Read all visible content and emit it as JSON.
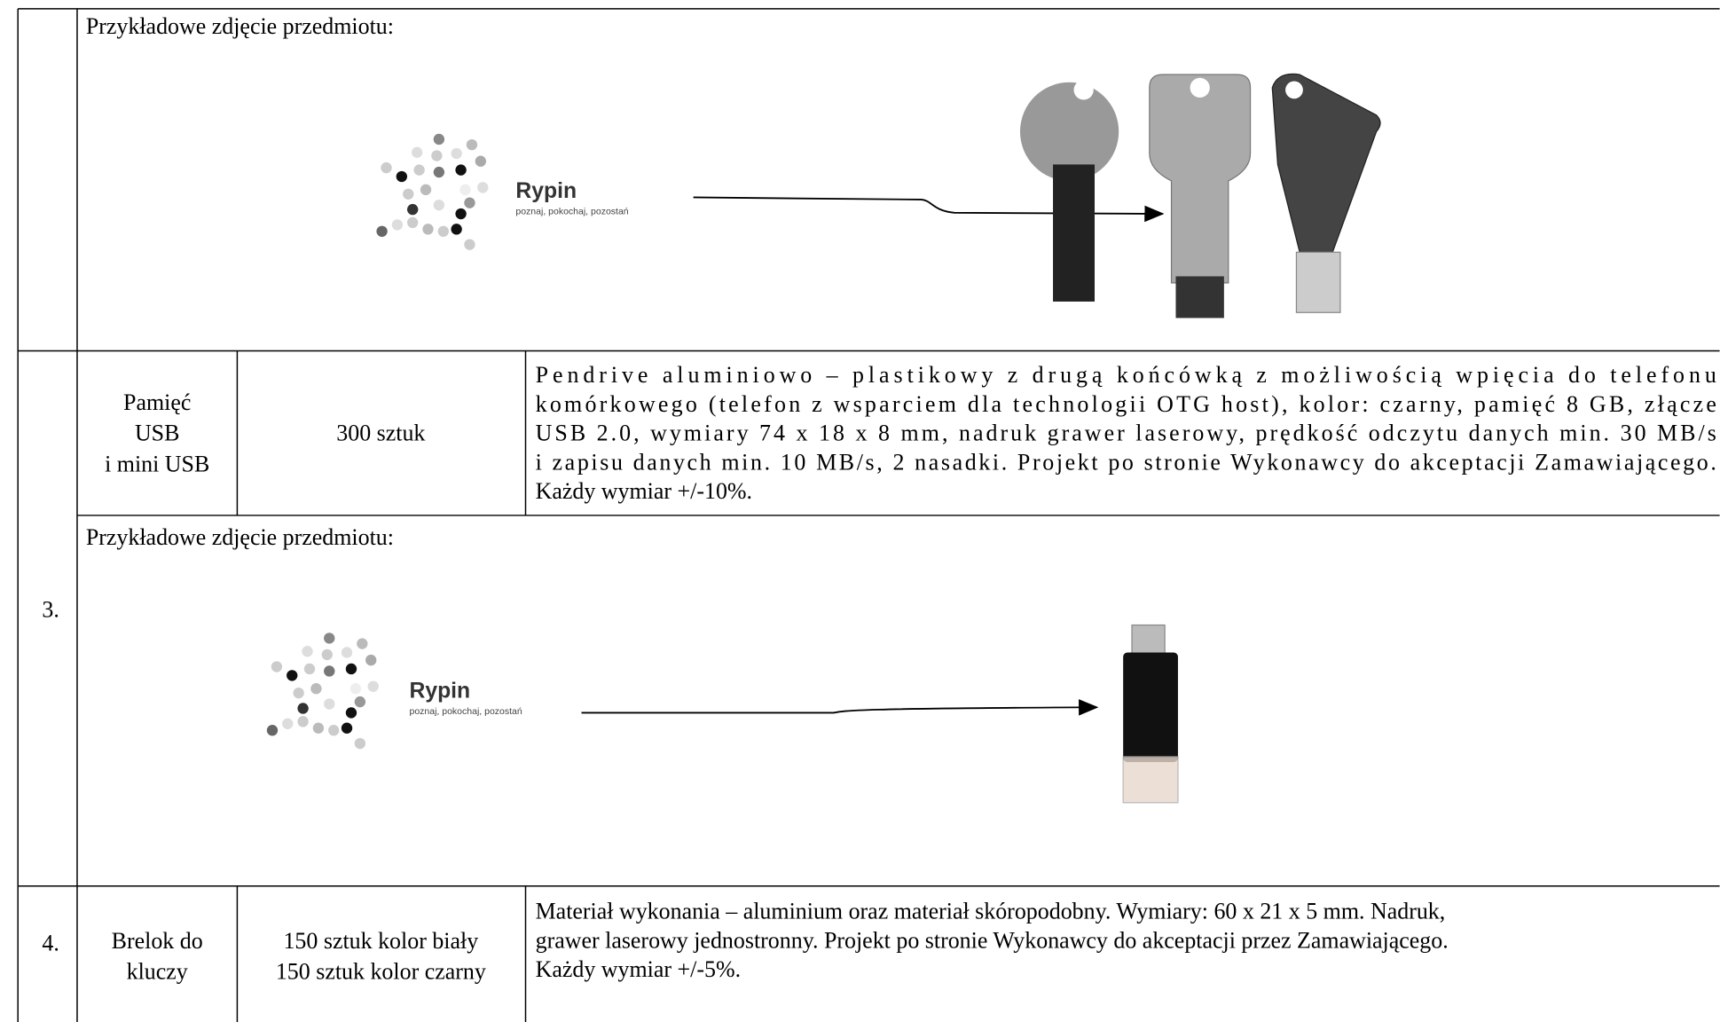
{
  "table": {
    "rows": [
      {
        "photo_caption": "Przykładowe zdjęcie przedmiotu:",
        "logo": {
          "name": "Rypin",
          "tagline": "poznaj, pokochaj, pozostań"
        }
      },
      {
        "number": "3.",
        "name_lines": [
          "Pamięć",
          "USB",
          "i mini USB"
        ],
        "quantity_lines": [
          "300 sztuk"
        ],
        "description_lines": [
          "Pendrive aluminiowo – plastikowy z drugą końcówką z możliwością wpięcia do telefonu",
          "komórkowego (telefon z wsparciem dla technologii OTG host), kolor: czarny, pamięć 8 GB, złącze",
          "USB 2.0, wymiary 74 x 18 x 8 mm, nadruk grawer laserowy, prędkość odczytu danych min. 30 MB/s",
          "i zapisu danych min. 10 MB/s, 2 nasadki. Projekt po stronie Wykonawcy do akceptacji Zamawiającego.",
          "Każdy wymiar +/-10%."
        ],
        "photo_caption": "Przykładowe zdjęcie przedmiotu:",
        "logo": {
          "name": "Rypin",
          "tagline": "poznaj, pokochaj, pozostań"
        }
      },
      {
        "number": "4.",
        "name_lines": [
          "Brelok do",
          "kluczy"
        ],
        "quantity_lines": [
          "150 sztuk kolor biały",
          "150 sztuk kolor czarny"
        ],
        "description_lines": [
          "Materiał wykonania – aluminium oraz materiał skóropodobny. Wymiary: 60 x 21 x 5 mm. Nadruk,",
          "grawer laserowy jednostronny. Projekt po stronie Wykonawcy do akceptacji przez Zamawiającego.",
          "Każdy wymiar +/-5%."
        ]
      }
    ]
  }
}
